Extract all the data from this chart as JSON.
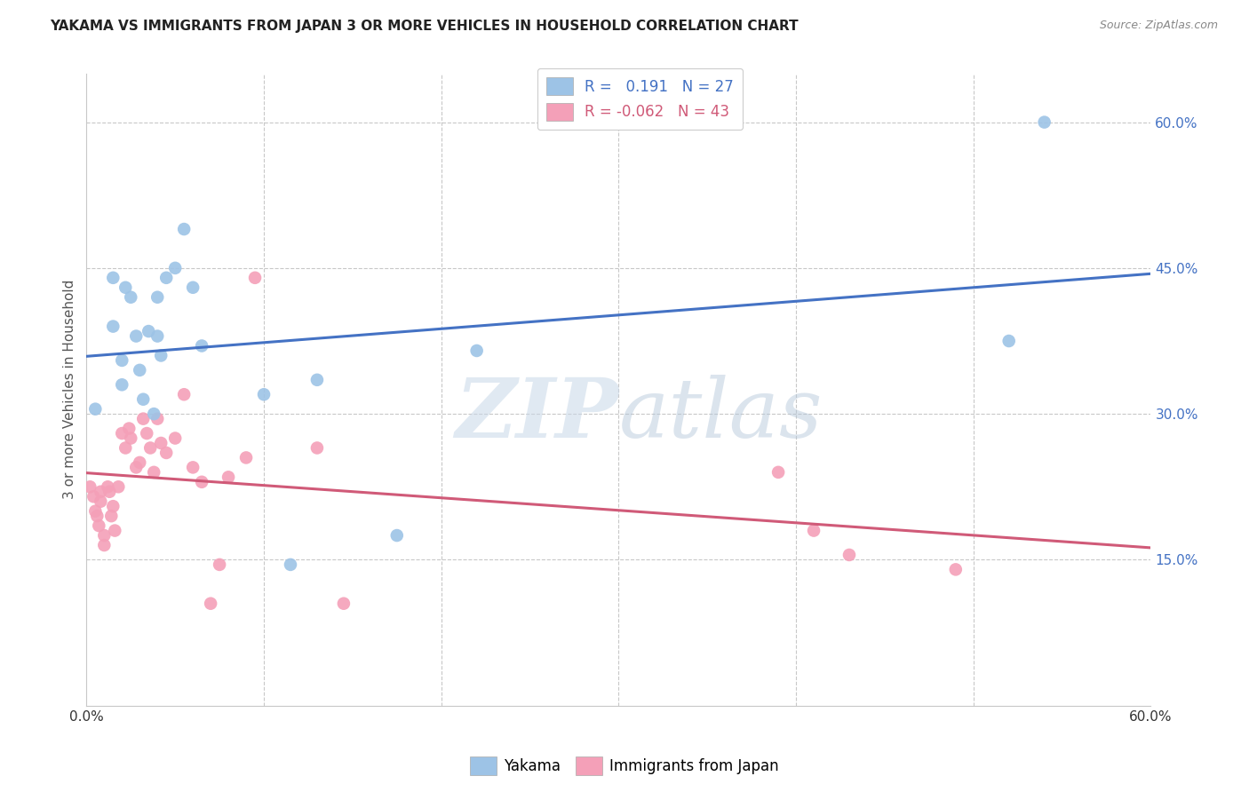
{
  "title": "YAKAMA VS IMMIGRANTS FROM JAPAN 3 OR MORE VEHICLES IN HOUSEHOLD CORRELATION CHART",
  "source": "Source: ZipAtlas.com",
  "ylabel": "3 or more Vehicles in Household",
  "xmin": 0.0,
  "xmax": 0.6,
  "ymin": 0.0,
  "ymax": 0.65,
  "xticks": [
    0.0,
    0.1,
    0.2,
    0.3,
    0.4,
    0.5,
    0.6
  ],
  "xtick_labels": [
    "0.0%",
    "",
    "",
    "",
    "",
    "",
    "60.0%"
  ],
  "ytick_right_vals": [
    0.15,
    0.3,
    0.45,
    0.6
  ],
  "ytick_right_labels": [
    "15.0%",
    "30.0%",
    "45.0%",
    "60.0%"
  ],
  "legend_labels_bottom": [
    "Yakama",
    "Immigrants from Japan"
  ],
  "watermark_zip": "ZIP",
  "watermark_atlas": "atlas",
  "blue_line_color": "#4472c4",
  "pink_line_color": "#d05a78",
  "scatter_blue_color": "#9dc3e6",
  "scatter_pink_color": "#f4a0b8",
  "background_color": "#ffffff",
  "grid_color": "#c8c8c8",
  "blue_scatter_x": [
    0.005,
    0.015,
    0.015,
    0.02,
    0.02,
    0.022,
    0.025,
    0.028,
    0.03,
    0.032,
    0.035,
    0.038,
    0.04,
    0.04,
    0.042,
    0.045,
    0.05,
    0.055,
    0.06,
    0.065,
    0.1,
    0.115,
    0.13,
    0.175,
    0.22,
    0.52,
    0.54
  ],
  "blue_scatter_y": [
    0.305,
    0.44,
    0.39,
    0.355,
    0.33,
    0.43,
    0.42,
    0.38,
    0.345,
    0.315,
    0.385,
    0.3,
    0.42,
    0.38,
    0.36,
    0.44,
    0.45,
    0.49,
    0.43,
    0.37,
    0.32,
    0.145,
    0.335,
    0.175,
    0.365,
    0.375,
    0.6
  ],
  "pink_scatter_x": [
    0.002,
    0.004,
    0.005,
    0.006,
    0.007,
    0.008,
    0.008,
    0.01,
    0.01,
    0.012,
    0.013,
    0.014,
    0.015,
    0.016,
    0.018,
    0.02,
    0.022,
    0.024,
    0.025,
    0.028,
    0.03,
    0.032,
    0.034,
    0.036,
    0.038,
    0.04,
    0.042,
    0.045,
    0.05,
    0.055,
    0.06,
    0.065,
    0.07,
    0.075,
    0.08,
    0.09,
    0.095,
    0.13,
    0.145,
    0.39,
    0.41,
    0.43,
    0.49
  ],
  "pink_scatter_y": [
    0.225,
    0.215,
    0.2,
    0.195,
    0.185,
    0.21,
    0.22,
    0.165,
    0.175,
    0.225,
    0.22,
    0.195,
    0.205,
    0.18,
    0.225,
    0.28,
    0.265,
    0.285,
    0.275,
    0.245,
    0.25,
    0.295,
    0.28,
    0.265,
    0.24,
    0.295,
    0.27,
    0.26,
    0.275,
    0.32,
    0.245,
    0.23,
    0.105,
    0.145,
    0.235,
    0.255,
    0.44,
    0.265,
    0.105,
    0.24,
    0.18,
    0.155,
    0.14
  ],
  "blue_line_intercept": 0.315,
  "blue_line_slope": 0.22,
  "pink_line_intercept": 0.225,
  "pink_line_slope": -0.055
}
